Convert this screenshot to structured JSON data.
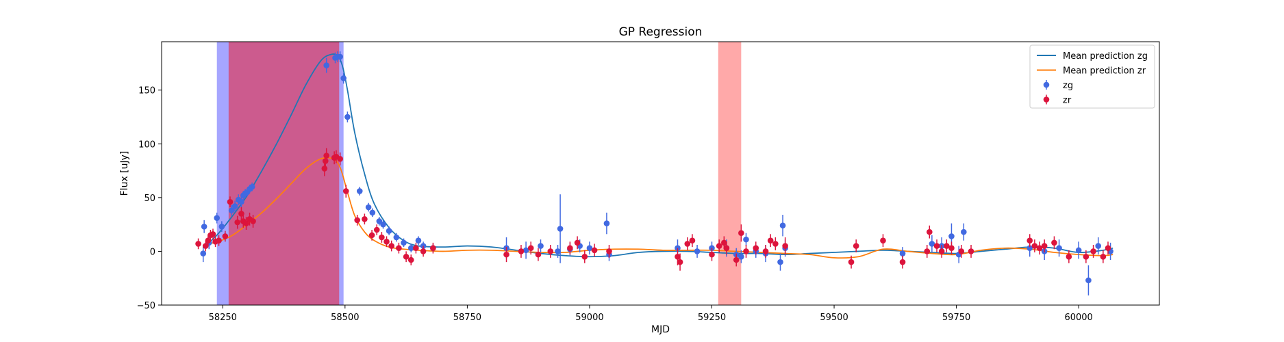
{
  "chart_data": {
    "type": "scatter",
    "title": "GP Regression",
    "xlabel": "MJD",
    "ylabel": "Flux [uJy]",
    "xlim": [
      58125,
      60165
    ],
    "ylim": [
      -50,
      195
    ],
    "xticks": [
      58250,
      58500,
      58750,
      59000,
      59250,
      59500,
      59750,
      60000
    ],
    "yticks": [
      -50,
      0,
      50,
      100,
      150
    ],
    "legend_position": "top-right",
    "legend": [
      "Mean prediction zg",
      "Mean prediction zr",
      "zg",
      "zr"
    ],
    "shaded_regions": [
      {
        "x0": 58238,
        "x1": 58497,
        "color": "#8080ff",
        "opacity": 0.7
      },
      {
        "x0": 58262,
        "x1": 58488,
        "color": "#d24d7a",
        "opacity": 0.85
      },
      {
        "x0": 59263,
        "x1": 59310,
        "color": "#ff8c8c",
        "opacity": 0.75
      }
    ],
    "series": [
      {
        "name": "Mean prediction zg",
        "kind": "line",
        "color": "#1f77b4",
        "x": [
          58210,
          58240,
          58270,
          58300,
          58330,
          58360,
          58390,
          58420,
          58450,
          58470,
          58485,
          58495,
          58505,
          58520,
          58540,
          58560,
          58590,
          58620,
          58650,
          58700,
          58750,
          58800,
          58850,
          58900,
          58950,
          59000,
          59050,
          59100,
          59150,
          59200,
          59250,
          59300,
          59350,
          59400,
          59450,
          59500,
          59550,
          59600,
          59650,
          59700,
          59750,
          59800,
          59850,
          59900,
          59950,
          60000,
          60050,
          60070
        ],
        "y": [
          3,
          16,
          33,
          52,
          75,
          100,
          127,
          155,
          177,
          183,
          182,
          172,
          150,
          110,
          72,
          44,
          22,
          10,
          5,
          4,
          5,
          4,
          1,
          -2,
          -4,
          -5,
          -4,
          -1,
          0,
          0,
          -1,
          -2,
          -2,
          -3,
          -2,
          -1,
          0,
          1,
          0,
          -1,
          -2,
          0,
          2,
          4,
          3,
          -1,
          1,
          3
        ]
      },
      {
        "name": "Mean prediction zr",
        "kind": "line",
        "color": "#ff7f0e",
        "x": [
          58210,
          58240,
          58270,
          58300,
          58330,
          58360,
          58390,
          58420,
          58450,
          58475,
          58490,
          58505,
          58520,
          58540,
          58560,
          58590,
          58620,
          58650,
          58700,
          58750,
          58800,
          58850,
          58900,
          58950,
          59000,
          59050,
          59100,
          59150,
          59200,
          59250,
          59300,
          59350,
          59400,
          59450,
          59500,
          59550,
          59600,
          59650,
          59700,
          59750,
          59800,
          59850,
          59900,
          59950,
          60000,
          60050,
          60070
        ],
        "y": [
          6,
          9,
          15,
          25,
          36,
          49,
          63,
          77,
          86,
          86,
          78,
          55,
          33,
          18,
          10,
          4,
          2,
          1,
          0,
          1,
          1,
          0,
          -1,
          -1,
          1,
          2,
          2,
          1,
          1,
          1,
          0,
          -1,
          -2,
          -3,
          -6,
          -5,
          2,
          0,
          -2,
          -3,
          1,
          3,
          2,
          -1,
          -3,
          -4,
          -3
        ]
      },
      {
        "name": "zg",
        "kind": "errorbar",
        "color": "#4169e1",
        "x": [
          58210,
          58212,
          58222,
          58238,
          58248,
          58268,
          58275,
          58282,
          58288,
          58292,
          58296,
          58300,
          58305,
          58310,
          58462,
          58480,
          58485,
          58490,
          58497,
          58505,
          58530,
          58548,
          58556,
          58570,
          58578,
          58590,
          58605,
          58620,
          58635,
          58650,
          58660,
          58680,
          58830,
          58870,
          58900,
          58935,
          58940,
          58960,
          58980,
          59000,
          59035,
          59040,
          59180,
          59220,
          59250,
          59280,
          59300,
          59310,
          59320,
          59340,
          59360,
          59390,
          59395,
          59400,
          59640,
          59700,
          59720,
          59740,
          59755,
          59765,
          59900,
          59930,
          59960,
          60000,
          60020,
          60040,
          60065
        ],
        "y": [
          -2,
          23,
          8,
          31,
          23,
          38,
          42,
          48,
          46,
          52,
          54,
          55,
          58,
          60,
          173,
          180,
          181,
          181,
          161,
          125,
          56,
          41,
          36,
          28,
          25,
          19,
          13,
          8,
          3,
          10,
          5,
          3,
          3,
          1,
          5,
          0,
          21,
          2,
          5,
          3,
          26,
          -3,
          3,
          0,
          3,
          3,
          -3,
          -5,
          11,
          0,
          -2,
          -10,
          24,
          3,
          -2,
          7,
          5,
          14,
          -3,
          18,
          3,
          0,
          3,
          1,
          -27,
          5,
          0
        ],
        "err": [
          8,
          6,
          6,
          5,
          5,
          5,
          5,
          5,
          5,
          4,
          4,
          4,
          4,
          4,
          7,
          5,
          5,
          5,
          5,
          5,
          4,
          4,
          4,
          4,
          4,
          4,
          4,
          4,
          4,
          4,
          4,
          4,
          10,
          8,
          6,
          6,
          32,
          6,
          6,
          6,
          10,
          6,
          8,
          6,
          6,
          8,
          6,
          6,
          6,
          6,
          8,
          8,
          10,
          8,
          6,
          8,
          8,
          12,
          8,
          8,
          8,
          8,
          8,
          8,
          14,
          8,
          8
        ]
      },
      {
        "name": "zr",
        "kind": "errorbar",
        "color": "#dc143c",
        "x": [
          58200,
          58215,
          58220,
          58225,
          58230,
          58235,
          58242,
          58255,
          58265,
          58280,
          58288,
          58292,
          58298,
          58305,
          58312,
          58458,
          58460,
          58462,
          58478,
          58482,
          58490,
          58502,
          58525,
          58540,
          58555,
          58565,
          58575,
          58585,
          58595,
          58610,
          58625,
          58635,
          58645,
          58660,
          58680,
          58830,
          58860,
          58880,
          58895,
          58920,
          58960,
          58975,
          58990,
          59010,
          59040,
          59180,
          59185,
          59200,
          59210,
          59250,
          59265,
          59275,
          59280,
          59300,
          59310,
          59320,
          59340,
          59360,
          59370,
          59380,
          59400,
          59535,
          59545,
          59600,
          59640,
          59690,
          59695,
          59710,
          59720,
          59730,
          59740,
          59760,
          59780,
          59900,
          59910,
          59920,
          59930,
          59950,
          59980,
          60015,
          60030,
          60050,
          60060
        ],
        "y": [
          7,
          5,
          10,
          15,
          16,
          9,
          10,
          14,
          46,
          27,
          35,
          28,
          26,
          30,
          28,
          77,
          84,
          89,
          87,
          88,
          86,
          56,
          29,
          30,
          15,
          20,
          13,
          9,
          5,
          3,
          -5,
          -8,
          3,
          0,
          3,
          -3,
          0,
          3,
          -3,
          0,
          3,
          8,
          -5,
          1,
          0,
          -5,
          -10,
          7,
          10,
          -3,
          5,
          8,
          3,
          -8,
          17,
          0,
          3,
          0,
          10,
          7,
          5,
          -10,
          5,
          10,
          -10,
          0,
          18,
          5,
          0,
          5,
          3,
          0,
          0,
          10,
          5,
          3,
          5,
          8,
          -5,
          -5,
          0,
          -5,
          3
        ],
        "err": [
          5,
          5,
          5,
          5,
          5,
          5,
          5,
          5,
          5,
          6,
          6,
          6,
          6,
          6,
          6,
          7,
          7,
          7,
          6,
          6,
          6,
          6,
          5,
          5,
          5,
          5,
          5,
          5,
          5,
          5,
          5,
          5,
          5,
          5,
          5,
          7,
          6,
          6,
          6,
          6,
          6,
          6,
          6,
          6,
          6,
          8,
          8,
          6,
          6,
          6,
          6,
          6,
          6,
          6,
          8,
          6,
          6,
          6,
          6,
          6,
          8,
          6,
          6,
          6,
          6,
          6,
          6,
          6,
          6,
          6,
          6,
          6,
          6,
          6,
          6,
          6,
          6,
          6,
          6,
          6,
          6,
          6,
          6
        ]
      }
    ]
  }
}
